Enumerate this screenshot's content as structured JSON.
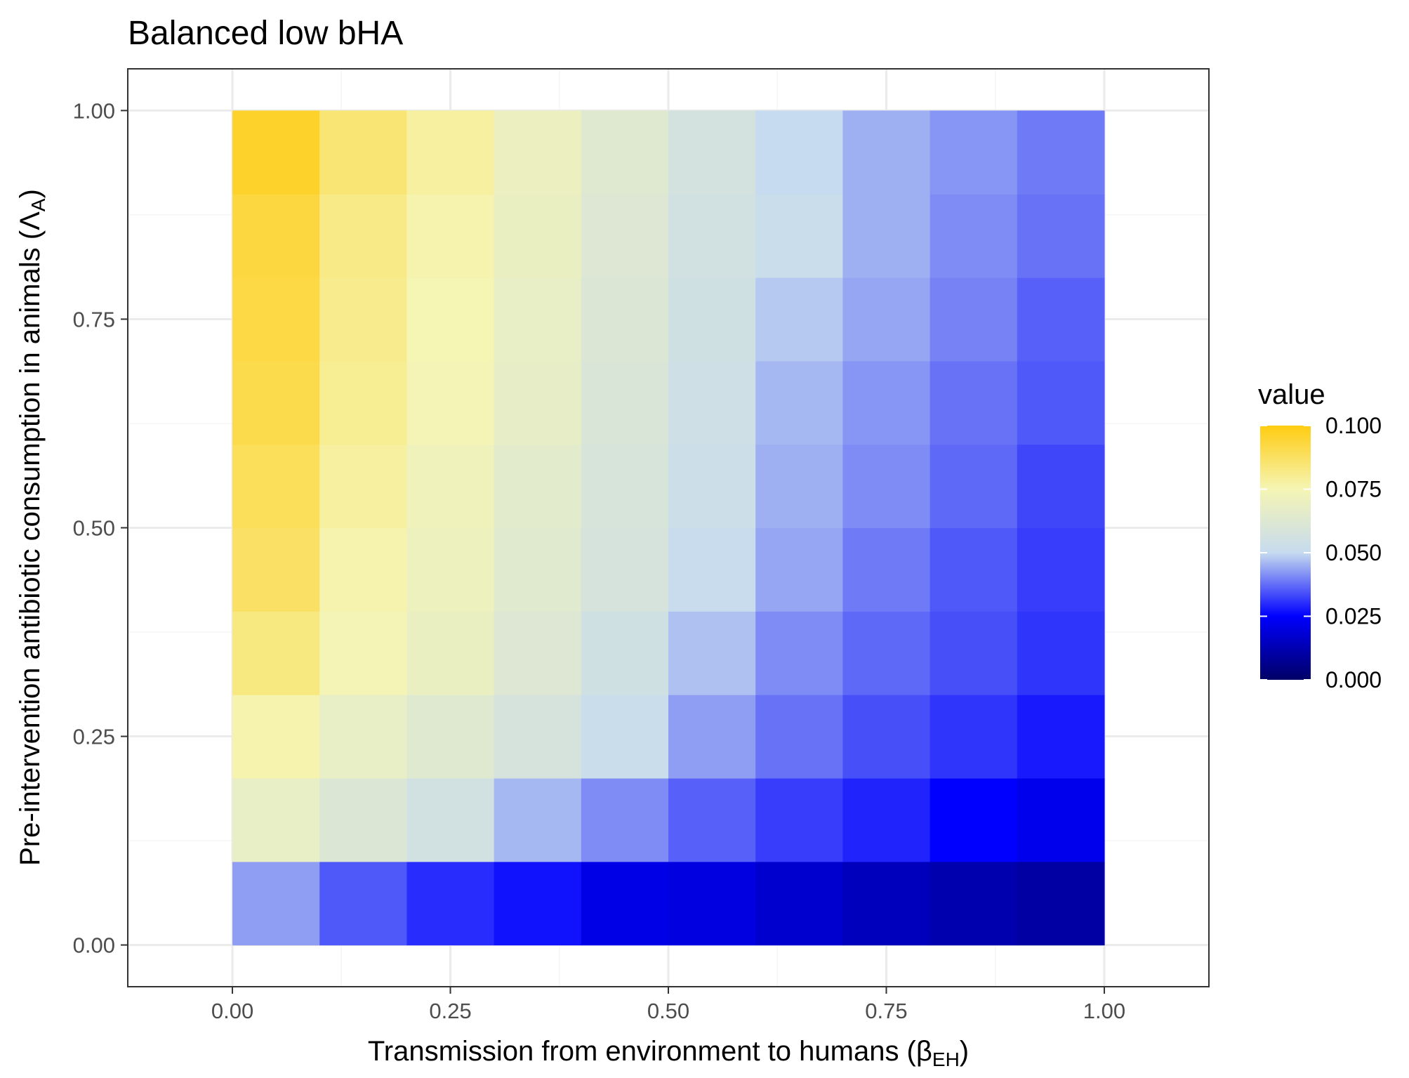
{
  "chart_data": {
    "type": "heatmap",
    "title": "Balanced low bHA",
    "xlabel": {
      "main": "Transmission from environment to humans (",
      "symbol": "β",
      "subscript": "EH",
      "close": ")"
    },
    "ylabel": {
      "main": "Pre-intervention antibiotic consumption in animals (",
      "symbol": "Λ",
      "subscript": "A",
      "close": ")"
    },
    "x_ticks": [
      "0.00",
      "0.25",
      "0.50",
      "0.75",
      "1.00"
    ],
    "y_ticks": [
      "0.00",
      "0.25",
      "0.50",
      "0.75",
      "1.00"
    ],
    "xlim": [
      -0.12,
      1.12
    ],
    "ylim": [
      -0.05,
      1.05
    ],
    "grid": true,
    "x_centers": [
      0.05,
      0.15,
      0.25,
      0.35,
      0.45,
      0.55,
      0.65,
      0.75,
      0.85,
      0.95
    ],
    "y_centers": [
      0.05,
      0.15,
      0.25,
      0.35,
      0.45,
      0.55,
      0.65,
      0.75,
      0.85,
      0.95
    ],
    "cell_width": 0.1,
    "cell_height": 0.1,
    "values": [
      [
        0.043,
        0.035,
        0.03,
        0.027,
        0.021,
        0.02,
        0.017,
        0.014,
        0.012,
        0.01
      ],
      [
        0.068,
        0.061,
        0.056,
        0.046,
        0.041,
        0.036,
        0.032,
        0.029,
        0.025,
        0.022
      ],
      [
        0.076,
        0.068,
        0.063,
        0.058,
        0.052,
        0.043,
        0.038,
        0.034,
        0.031,
        0.028
      ],
      [
        0.083,
        0.074,
        0.069,
        0.062,
        0.055,
        0.047,
        0.041,
        0.037,
        0.034,
        0.031
      ],
      [
        0.087,
        0.076,
        0.071,
        0.064,
        0.058,
        0.051,
        0.044,
        0.039,
        0.035,
        0.032
      ],
      [
        0.089,
        0.078,
        0.072,
        0.065,
        0.059,
        0.053,
        0.045,
        0.041,
        0.037,
        0.033
      ],
      [
        0.091,
        0.08,
        0.074,
        0.067,
        0.06,
        0.054,
        0.046,
        0.042,
        0.038,
        0.035
      ],
      [
        0.092,
        0.081,
        0.075,
        0.068,
        0.061,
        0.055,
        0.048,
        0.044,
        0.04,
        0.036
      ],
      [
        0.093,
        0.082,
        0.076,
        0.069,
        0.062,
        0.056,
        0.052,
        0.045,
        0.041,
        0.038
      ],
      [
        0.096,
        0.085,
        0.078,
        0.07,
        0.063,
        0.057,
        0.05,
        0.045,
        0.042,
        0.039
      ]
    ],
    "legend": {
      "title": "value",
      "placement": "right",
      "range": [
        0.0,
        0.1
      ],
      "labels": [
        "0.100",
        "0.075",
        "0.050",
        "0.025",
        "0.000"
      ],
      "label_values": [
        0.1,
        0.075,
        0.05,
        0.025,
        0.0
      ]
    },
    "colors": {
      "scale": [
        {
          "value": 0.0,
          "color": "#000066"
        },
        {
          "value": 0.025,
          "color": "#0000ff"
        },
        {
          "value": 0.05,
          "color": "#c6dbef"
        },
        {
          "value": 0.075,
          "color": "#f5f5b4"
        },
        {
          "value": 0.1,
          "color": "#ffcc11"
        }
      ],
      "panel_border": "#333333",
      "grid_major": "#ebebeb",
      "grid_minor": "#f5f5f5",
      "tick": "#333333"
    }
  }
}
